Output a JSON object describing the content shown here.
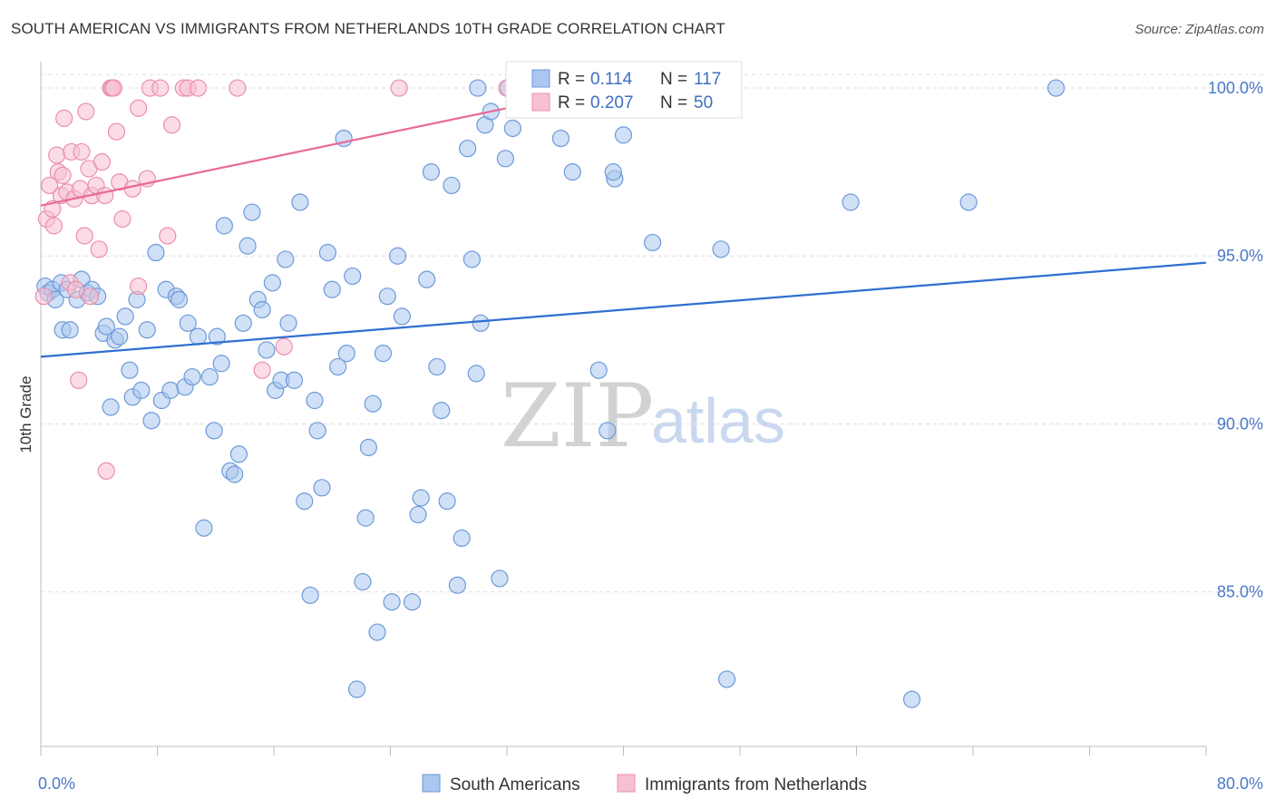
{
  "title": "SOUTH AMERICAN VS IMMIGRANTS FROM NETHERLANDS 10TH GRADE CORRELATION CHART",
  "source": "Source: ZipAtlas.com",
  "watermark": {
    "zip": "ZIP",
    "atlas": "atlas"
  },
  "colors": {
    "blue_fill": "#a9c7ef",
    "blue_stroke": "#6d9ad8",
    "blue_line": "#2f6fd0",
    "pink_fill": "#f7c0d1",
    "pink_stroke": "#ea8fab",
    "pink_line": "#e86a94",
    "grid": "#dddddd",
    "axis": "#bbbbbb"
  },
  "legend": {
    "rows": [
      {
        "r_label": "R =",
        "r_value": "0.114",
        "n_label": "N =",
        "n_value": "117"
      },
      {
        "r_label": "R =",
        "r_value": "0.207",
        "n_label": "N =",
        "n_value": "50"
      }
    ]
  },
  "chart_data": {
    "type": "scatter",
    "title": "SOUTH AMERICAN VS IMMIGRANTS FROM NETHERLANDS 10TH GRADE CORRELATION CHART",
    "xlabel": "",
    "ylabel": "10th Grade",
    "xlim": [
      0,
      80
    ],
    "ylim": [
      80.4,
      101.0
    ],
    "x_tick_labels": [
      "0.0%",
      "80.0%"
    ],
    "y_ticks": [
      85,
      90,
      95,
      100
    ],
    "y_tick_labels": [
      "85.0%",
      "90.0%",
      "95.0%",
      "100.0%"
    ],
    "grid": true,
    "series": [
      {
        "name": "South Americans",
        "color": "blue",
        "r": 0.114,
        "n": 117,
        "trend": {
          "x": [
            0,
            80
          ],
          "y": [
            92.0,
            94.8
          ]
        },
        "points": [
          [
            0.3,
            94.1
          ],
          [
            0.5,
            93.9
          ],
          [
            0.8,
            94.0
          ],
          [
            1.0,
            93.7
          ],
          [
            1.4,
            94.2
          ],
          [
            1.5,
            92.8
          ],
          [
            1.8,
            94.0
          ],
          [
            2.0,
            92.8
          ],
          [
            2.5,
            93.7
          ],
          [
            2.8,
            94.3
          ],
          [
            3.2,
            93.9
          ],
          [
            3.5,
            94.0
          ],
          [
            3.9,
            93.8
          ],
          [
            4.3,
            92.7
          ],
          [
            4.5,
            92.9
          ],
          [
            4.8,
            90.5
          ],
          [
            5.1,
            92.5
          ],
          [
            5.4,
            92.6
          ],
          [
            5.8,
            93.2
          ],
          [
            6.1,
            91.6
          ],
          [
            6.3,
            90.8
          ],
          [
            6.6,
            93.7
          ],
          [
            6.9,
            91.0
          ],
          [
            7.3,
            92.8
          ],
          [
            7.6,
            90.1
          ],
          [
            7.9,
            95.1
          ],
          [
            8.3,
            90.7
          ],
          [
            8.6,
            94.0
          ],
          [
            8.9,
            91.0
          ],
          [
            9.3,
            93.8
          ],
          [
            9.5,
            93.7
          ],
          [
            9.9,
            91.1
          ],
          [
            10.1,
            93.0
          ],
          [
            10.4,
            91.4
          ],
          [
            10.8,
            92.6
          ],
          [
            11.2,
            86.9
          ],
          [
            11.6,
            91.4
          ],
          [
            11.9,
            89.8
          ],
          [
            12.1,
            92.6
          ],
          [
            12.4,
            91.8
          ],
          [
            12.6,
            95.9
          ],
          [
            13.0,
            88.6
          ],
          [
            13.3,
            88.5
          ],
          [
            13.6,
            89.1
          ],
          [
            13.9,
            93.0
          ],
          [
            14.2,
            95.3
          ],
          [
            14.5,
            96.3
          ],
          [
            14.9,
            93.7
          ],
          [
            15.2,
            93.4
          ],
          [
            15.5,
            92.2
          ],
          [
            15.9,
            94.2
          ],
          [
            16.1,
            91.0
          ],
          [
            16.5,
            91.3
          ],
          [
            16.8,
            94.9
          ],
          [
            17.0,
            93.0
          ],
          [
            17.4,
            91.3
          ],
          [
            17.8,
            96.6
          ],
          [
            18.1,
            87.7
          ],
          [
            18.5,
            84.9
          ],
          [
            18.8,
            90.7
          ],
          [
            19.0,
            89.8
          ],
          [
            19.3,
            88.1
          ],
          [
            19.7,
            95.1
          ],
          [
            20.0,
            94.0
          ],
          [
            20.4,
            91.7
          ],
          [
            20.8,
            98.5
          ],
          [
            21.0,
            92.1
          ],
          [
            21.4,
            94.4
          ],
          [
            21.7,
            82.1
          ],
          [
            22.1,
            85.3
          ],
          [
            22.3,
            87.2
          ],
          [
            22.5,
            89.3
          ],
          [
            22.8,
            90.6
          ],
          [
            23.1,
            83.8
          ],
          [
            23.5,
            92.1
          ],
          [
            23.8,
            93.8
          ],
          [
            24.1,
            84.7
          ],
          [
            24.5,
            95.0
          ],
          [
            24.8,
            93.2
          ],
          [
            25.5,
            84.7
          ],
          [
            25.9,
            87.3
          ],
          [
            26.1,
            87.8
          ],
          [
            26.5,
            94.3
          ],
          [
            26.8,
            97.5
          ],
          [
            27.2,
            91.7
          ],
          [
            27.5,
            90.4
          ],
          [
            27.9,
            87.7
          ],
          [
            28.2,
            97.1
          ],
          [
            28.6,
            85.2
          ],
          [
            28.9,
            86.6
          ],
          [
            29.3,
            98.2
          ],
          [
            29.6,
            94.9
          ],
          [
            29.9,
            91.5
          ],
          [
            30.2,
            93.0
          ],
          [
            30.5,
            98.9
          ],
          [
            30.9,
            99.3
          ],
          [
            31.5,
            85.4
          ],
          [
            31.9,
            97.9
          ],
          [
            32.1,
            100.0
          ],
          [
            32.4,
            98.8
          ],
          [
            35.7,
            98.5
          ],
          [
            36.5,
            97.5
          ],
          [
            38.3,
            91.6
          ],
          [
            38.9,
            89.8
          ],
          [
            39.4,
            97.3
          ],
          [
            39.3,
            97.5
          ],
          [
            40.0,
            98.6
          ],
          [
            42.0,
            95.4
          ],
          [
            46.7,
            95.2
          ],
          [
            47.1,
            82.4
          ],
          [
            55.6,
            96.6
          ],
          [
            59.8,
            81.8
          ],
          [
            69.7,
            100.0
          ],
          [
            63.7,
            96.6
          ],
          [
            30.0,
            100.0
          ]
        ]
      },
      {
        "name": "Immigrants from Netherlands",
        "color": "pink",
        "r": 0.207,
        "n": 50,
        "trend": {
          "x": [
            0,
            38.6
          ],
          "y": [
            96.5,
            100.0
          ]
        },
        "points": [
          [
            0.2,
            93.8
          ],
          [
            0.4,
            96.1
          ],
          [
            0.6,
            97.1
          ],
          [
            0.8,
            96.4
          ],
          [
            0.9,
            95.9
          ],
          [
            1.1,
            98.0
          ],
          [
            1.2,
            97.5
          ],
          [
            1.4,
            96.8
          ],
          [
            1.5,
            97.4
          ],
          [
            1.6,
            99.1
          ],
          [
            1.8,
            96.9
          ],
          [
            2.0,
            94.2
          ],
          [
            2.1,
            98.1
          ],
          [
            2.3,
            96.7
          ],
          [
            2.4,
            94.0
          ],
          [
            2.6,
            91.3
          ],
          [
            2.7,
            97.0
          ],
          [
            2.8,
            98.1
          ],
          [
            3.0,
            95.6
          ],
          [
            3.1,
            99.3
          ],
          [
            3.3,
            97.6
          ],
          [
            3.4,
            93.8
          ],
          [
            3.5,
            96.8
          ],
          [
            3.8,
            97.1
          ],
          [
            4.0,
            95.2
          ],
          [
            4.2,
            97.8
          ],
          [
            4.4,
            96.8
          ],
          [
            4.5,
            88.6
          ],
          [
            4.8,
            100.0
          ],
          [
            4.9,
            100.0
          ],
          [
            5.0,
            100.0
          ],
          [
            5.2,
            98.7
          ],
          [
            5.4,
            97.2
          ],
          [
            5.6,
            96.1
          ],
          [
            6.3,
            97.0
          ],
          [
            6.7,
            99.4
          ],
          [
            6.7,
            94.1
          ],
          [
            7.3,
            97.3
          ],
          [
            7.5,
            100.0
          ],
          [
            8.2,
            100.0
          ],
          [
            8.7,
            95.6
          ],
          [
            9.0,
            98.9
          ],
          [
            9.8,
            100.0
          ],
          [
            10.1,
            100.0
          ],
          [
            10.8,
            100.0
          ],
          [
            13.5,
            100.0
          ],
          [
            15.2,
            91.6
          ],
          [
            16.7,
            92.3
          ],
          [
            24.6,
            100.0
          ],
          [
            32.0,
            100.0
          ]
        ]
      }
    ]
  },
  "bottom_legend": [
    {
      "label": "South Americans",
      "color": "blue"
    },
    {
      "label": "Immigrants from Netherlands",
      "color": "pink"
    }
  ]
}
